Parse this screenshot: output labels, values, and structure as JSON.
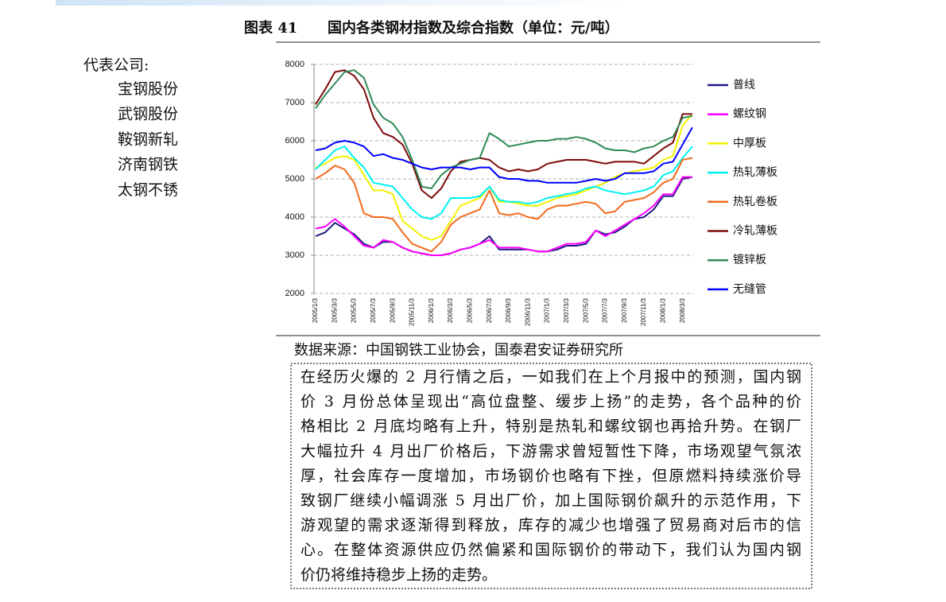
{
  "header": {
    "figure_label": "图表 41",
    "title": "国内各类钢材指数及综合指数（单位：元/吨）"
  },
  "sidebar": {
    "heading": "代表公司:",
    "items": [
      "宝钢股份",
      "武钢股份",
      "鞍钢新轧",
      "济南钢铁",
      "太钢不锈"
    ]
  },
  "chart_data": {
    "type": "line",
    "categories": [
      "2005/1/3",
      null,
      "2005/3/3",
      null,
      "2005/5/3",
      null,
      "2005/7/3",
      null,
      "2005/9/3",
      null,
      "2005/11/3",
      null,
      "2006/1/3",
      null,
      "2006/3/3",
      null,
      "2006/5/3",
      null,
      "2006/7/3",
      null,
      "2006/9/3",
      null,
      "2006/11/3",
      null,
      "2007/1/3",
      null,
      "2007/3/3",
      null,
      "2007/5/3",
      null,
      "2007/7/3",
      null,
      "2007/9/3",
      null,
      "2007/11/3",
      null,
      "2008/1/3",
      null,
      "2008/3/3",
      null
    ],
    "series": [
      {
        "name": "普线",
        "color": "#1a1a80",
        "values": [
          3500,
          3600,
          3850,
          3700,
          3550,
          3300,
          3200,
          3350,
          3350,
          3200,
          3100,
          3050,
          3000,
          3000,
          3050,
          3150,
          3200,
          3300,
          3500,
          3150,
          3150,
          3150,
          3150,
          3100,
          3100,
          3150,
          3250,
          3250,
          3300,
          3650,
          3550,
          3600,
          3750,
          3950,
          4000,
          4200,
          4550,
          4550,
          5000,
          5050
        ]
      },
      {
        "name": "螺纹钢",
        "color": "#ff00ff",
        "values": [
          3700,
          3750,
          3950,
          3750,
          3500,
          3250,
          3200,
          3400,
          3350,
          3200,
          3100,
          3050,
          3000,
          3000,
          3050,
          3150,
          3200,
          3300,
          3400,
          3200,
          3200,
          3200,
          3150,
          3100,
          3100,
          3200,
          3300,
          3300,
          3350,
          3650,
          3500,
          3650,
          3800,
          3950,
          4100,
          4300,
          4600,
          4600,
          5050,
          5050
        ]
      },
      {
        "name": "中厚板",
        "color": "#f2f200",
        "values": [
          5300,
          5400,
          5550,
          5600,
          5500,
          5100,
          4700,
          4700,
          4600,
          3900,
          3700,
          3500,
          3400,
          3500,
          3900,
          4300,
          4400,
          4500,
          4800,
          4400,
          4400,
          4350,
          4300,
          4300,
          4400,
          4500,
          4550,
          4600,
          4700,
          4800,
          4900,
          5050,
          5150,
          5200,
          5250,
          5300,
          5500,
          5600,
          6400,
          6700
        ]
      },
      {
        "name": "热轧薄板",
        "color": "#00f0f0",
        "values": [
          5250,
          5500,
          5750,
          5850,
          5550,
          5300,
          4900,
          4850,
          4800,
          4500,
          4200,
          4000,
          3950,
          4100,
          4500,
          4500,
          4500,
          4550,
          4800,
          4450,
          4400,
          4400,
          4350,
          4400,
          4500,
          4550,
          4600,
          4650,
          4750,
          4800,
          4700,
          4650,
          4600,
          4650,
          4700,
          4800,
          5100,
          5200,
          5550,
          5850
        ]
      },
      {
        "name": "热轧卷板",
        "color": "#f26a1b",
        "values": [
          5000,
          5150,
          5350,
          5250,
          4900,
          4100,
          4000,
          4000,
          3950,
          3600,
          3300,
          3200,
          3100,
          3350,
          3800,
          4000,
          4100,
          4200,
          4700,
          4100,
          4050,
          4100,
          4000,
          3950,
          4200,
          4300,
          4300,
          4350,
          4400,
          4350,
          4100,
          4150,
          4400,
          4450,
          4500,
          4650,
          4900,
          5000,
          5500,
          5550
        ]
      },
      {
        "name": "冷轧薄板",
        "color": "#7f0a0a",
        "values": [
          6950,
          7350,
          7800,
          7850,
          7700,
          7350,
          6600,
          6200,
          6100,
          5900,
          5400,
          4700,
          4500,
          4750,
          5200,
          5450,
          5500,
          5550,
          5500,
          5300,
          5200,
          5250,
          5200,
          5250,
          5400,
          5450,
          5500,
          5500,
          5500,
          5450,
          5400,
          5450,
          5450,
          5450,
          5400,
          5600,
          5800,
          5950,
          6700,
          6700
        ]
      },
      {
        "name": "镀锌板",
        "color": "#2e8b57",
        "values": [
          6850,
          7200,
          7500,
          7800,
          7850,
          7650,
          6950,
          6600,
          6450,
          6100,
          5500,
          4800,
          4750,
          5100,
          5300,
          5400,
          5500,
          5550,
          6200,
          6050,
          5850,
          5900,
          5950,
          6000,
          6000,
          6050,
          6050,
          6100,
          6050,
          5950,
          5800,
          5750,
          5750,
          5700,
          5800,
          5850,
          6000,
          6100,
          6600,
          6650
        ]
      },
      {
        "name": "无缝管",
        "color": "#0000ff",
        "values": [
          5750,
          5800,
          5950,
          6000,
          5950,
          5850,
          5600,
          5650,
          5550,
          5500,
          5400,
          5300,
          5250,
          5300,
          5300,
          5300,
          5250,
          5300,
          5300,
          5050,
          5000,
          5000,
          4950,
          4950,
          4900,
          4900,
          4900,
          4900,
          4950,
          5000,
          4950,
          5000,
          5150,
          5150,
          5150,
          5200,
          5400,
          5450,
          5900,
          6350
        ]
      }
    ],
    "ylim": [
      2000,
      8000
    ],
    "yticks": [
      2000,
      3000,
      4000,
      5000,
      6000,
      7000,
      8000
    ],
    "grid": true,
    "legend": "right"
  },
  "source": "数据来源：中国钢铁工业协会，国泰君安证券研究所",
  "body": {
    "lines": [
      "在经历火爆的 2 月行情之后，一如我们在上个月报中的预测，国内钢",
      "价 3 月份总体呈现出“高位盘整、缓步上扬”的走势，各个品种的价",
      "格相比 2 月底均略有上升，特别是热轧和螺纹钢也再拾升势。在钢厂",
      "大幅拉升 4 月出厂价格后，下游需求曾短暂性下降，市场观望气氛浓",
      "厚，社会库存一度增加，市场钢价也略有下挫，但原燃料持续涨价导",
      "致钢厂继续小幅调涨 5 月出厂价，加上国际钢价飙升的示范作用，下",
      "游观望的需求逐渐得到释放，库存的减少也增强了贸易商对后市的信",
      "心。在整体资源供应仍然偏紧和国际钢价的带动下，我们认为国内钢",
      "价仍将维持稳步上扬的走势。"
    ]
  }
}
